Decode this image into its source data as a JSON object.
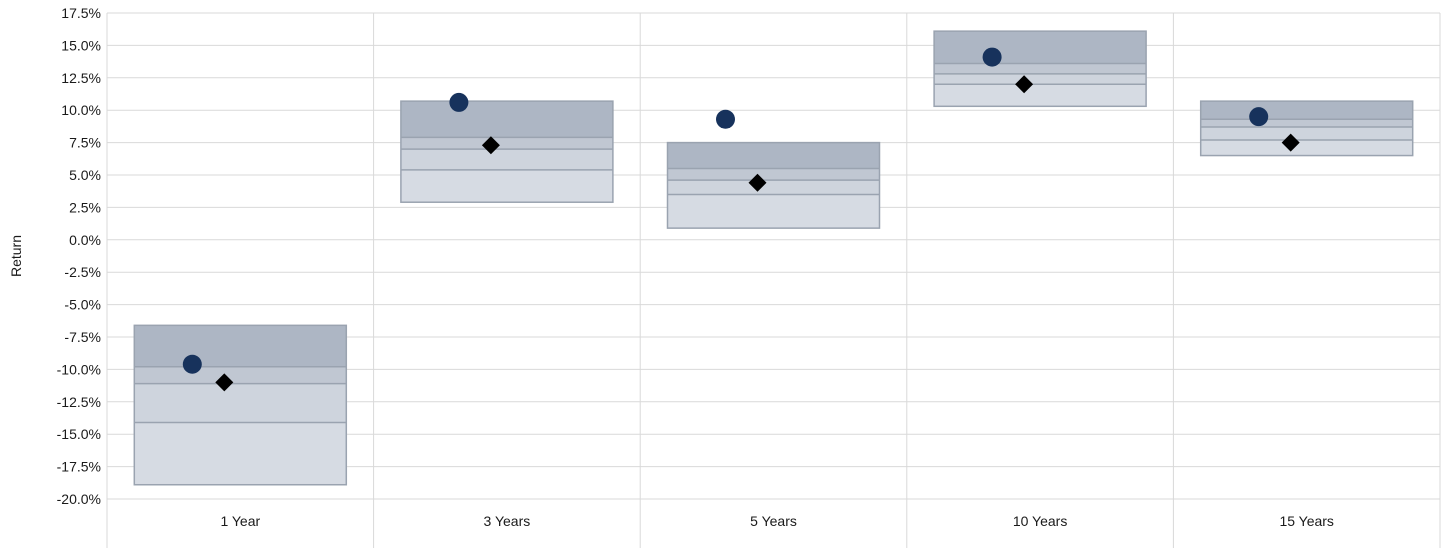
{
  "chart_data": {
    "type": "floating-bar-range",
    "title": "",
    "xlabel": "",
    "ylabel": "Return",
    "ylim": [
      -20.0,
      17.5
    ],
    "y_tick_step": 2.5,
    "y_tick_labels": [
      "17.5%",
      "15.0%",
      "12.5%",
      "10.0%",
      "7.5%",
      "5.0%",
      "2.5%",
      "0.0%",
      "-2.5%",
      "-5.0%",
      "-7.5%",
      "-10.0%",
      "-12.5%",
      "-15.0%",
      "-17.5%",
      "-20.0%"
    ],
    "grid": true,
    "categories": [
      "1 Year",
      "3 Years",
      "5 Years",
      "10 Years",
      "15 Years"
    ],
    "ranges": [
      {
        "bottom": -18.9,
        "p25": -14.1,
        "median": -11.1,
        "p75": -9.8,
        "top": -6.6
      },
      {
        "bottom": 2.9,
        "p25": 5.4,
        "median": 7.0,
        "p75": 7.9,
        "top": 10.7
      },
      {
        "bottom": 0.9,
        "p25": 3.5,
        "median": 4.6,
        "p75": 5.5,
        "top": 7.5
      },
      {
        "bottom": 10.3,
        "p25": 12.0,
        "median": 12.8,
        "p75": 13.6,
        "top": 16.1
      },
      {
        "bottom": 6.5,
        "p25": 7.7,
        "median": 8.7,
        "p75": 9.3,
        "top": 10.7
      }
    ],
    "series": [
      {
        "marker": "circle",
        "color": "#17325c",
        "values": [
          -9.6,
          10.6,
          9.3,
          14.1,
          9.5
        ]
      },
      {
        "marker": "diamond",
        "color": "#000000",
        "values": [
          -11.0,
          7.3,
          4.4,
          12.0,
          7.5
        ]
      }
    ],
    "colors": {
      "band_top": "#adb6c4",
      "band_upper_mid": "#c0c7d2",
      "band_lower_mid": "#ced4dd",
      "band_bottom": "#d6dbe3",
      "band_line": "#9aa3b0",
      "grid": "#d9d9d9"
    }
  }
}
